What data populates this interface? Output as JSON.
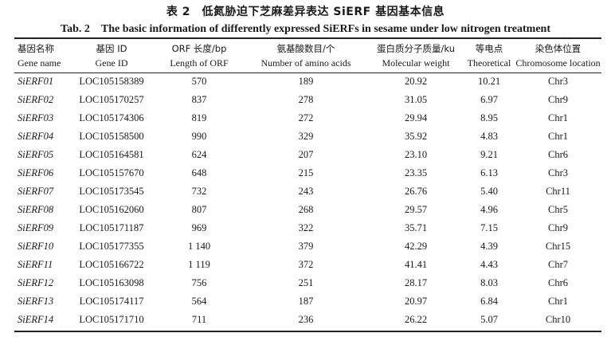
{
  "caption": {
    "cn": "表 2　低氮胁迫下芝麻差异表达 SiERF 基因基本信息",
    "en": "Tab. 2　The basic information of differently expressed SiERFs in sesame under low nitrogen treatment"
  },
  "columns": [
    {
      "cn": "基因名称",
      "en": "Gene name"
    },
    {
      "cn": "基因 ID",
      "en": "Gene ID"
    },
    {
      "cn": "ORF 长度/bp",
      "en": "Length of ORF"
    },
    {
      "cn": "氨基酸数目/个",
      "en": "Number of amino acids"
    },
    {
      "cn": "蛋白质分子质量/ku",
      "en": "Molecular weight"
    },
    {
      "cn": "等电点",
      "en": "Theoretical"
    },
    {
      "cn": "染色体位置",
      "en": "Chromosome location"
    }
  ],
  "rows": [
    [
      "SiERF01",
      "LOC105158389",
      "570",
      "189",
      "20.92",
      "10.21",
      "Chr3"
    ],
    [
      "SiERF02",
      "LOC105170257",
      "837",
      "278",
      "31.05",
      "6.97",
      "Chr9"
    ],
    [
      "SiERF03",
      "LOC105174306",
      "819",
      "272",
      "29.94",
      "8.95",
      "Chr1"
    ],
    [
      "SiERF04",
      "LOC105158500",
      "990",
      "329",
      "35.92",
      "4.83",
      "Chr1"
    ],
    [
      "SiERF05",
      "LOC105164581",
      "624",
      "207",
      "23.10",
      "9.21",
      "Chr6"
    ],
    [
      "SiERF06",
      "LOC105157670",
      "648",
      "215",
      "23.35",
      "6.13",
      "Chr3"
    ],
    [
      "SiERF07",
      "LOC105173545",
      "732",
      "243",
      "26.76",
      "5.40",
      "Chr11"
    ],
    [
      "SiERF08",
      "LOC105162060",
      "807",
      "268",
      "29.57",
      "4.96",
      "Chr5"
    ],
    [
      "SiERF09",
      "LOC105171187",
      "969",
      "322",
      "35.71",
      "7.15",
      "Chr9"
    ],
    [
      "SiERF10",
      "LOC105177355",
      "1 140",
      "379",
      "42.29",
      "4.39",
      "Chr15"
    ],
    [
      "SiERF11",
      "LOC105166722",
      "1 119",
      "372",
      "41.41",
      "4.43",
      "Chr7"
    ],
    [
      "SiERF12",
      "LOC105163098",
      "756",
      "251",
      "28.17",
      "8.03",
      "Chr6"
    ],
    [
      "SiERF13",
      "LOC105174117",
      "564",
      "187",
      "20.97",
      "6.84",
      "Chr1"
    ],
    [
      "SiERF14",
      "LOC105171710",
      "711",
      "236",
      "26.22",
      "5.07",
      "Chr10"
    ]
  ]
}
